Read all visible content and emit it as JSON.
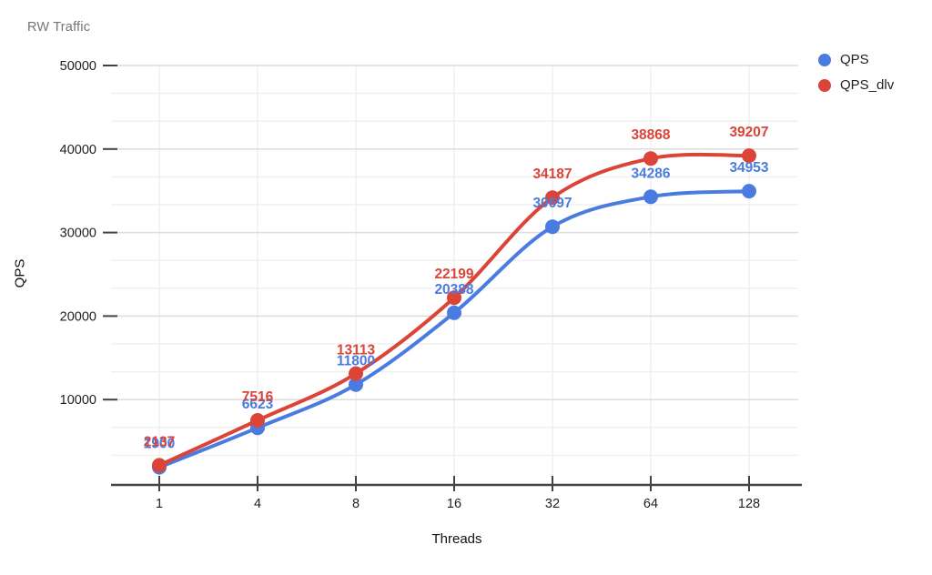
{
  "header": {
    "title": "RW Traffic"
  },
  "axes": {
    "x_title": "Threads",
    "y_title": "QPS"
  },
  "legend": {
    "position": "right",
    "items": [
      {
        "label": "QPS",
        "color": "#4a7be0"
      },
      {
        "label": "QPS_dlv",
        "color": "#db4437"
      }
    ]
  },
  "colors": {
    "background": "#ffffff",
    "series_qps": "#4a7be0",
    "series_qps_dlv": "#db4437",
    "title_text": "#757575",
    "axis_text": "#1f1f1f",
    "axis_line": "#424242",
    "grid_major": "#dcdcdc",
    "grid_minor": "#f0f0f0"
  },
  "chart_data": {
    "type": "line",
    "title": "RW Traffic",
    "xlabel": "Threads",
    "ylabel": "QPS",
    "categories": [
      "1",
      "4",
      "8",
      "16",
      "32",
      "64",
      "128"
    ],
    "series": [
      {
        "name": "QPS",
        "color": "#4a7be0",
        "values": [
          1900,
          6623,
          11800,
          20388,
          30697,
          34286,
          34953
        ]
      },
      {
        "name": "QPS_dlv",
        "color": "#db4437",
        "values": [
          2137,
          7516,
          13113,
          22199,
          34187,
          38868,
          39207
        ]
      }
    ],
    "ylim": [
      0,
      50000
    ],
    "yticks": [
      10000,
      20000,
      30000,
      40000,
      50000
    ],
    "minor_grid_divisions_per_major": 3,
    "grid": true,
    "line_style": "smooth",
    "point_labels": true,
    "legend_position": "right"
  }
}
